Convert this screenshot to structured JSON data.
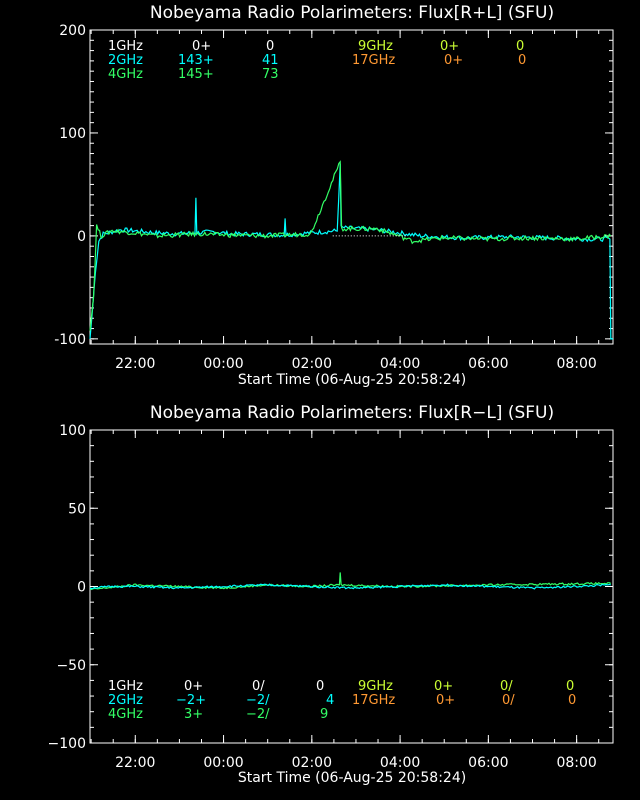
{
  "colors": {
    "bg": "#000000",
    "axis": "#ffffff",
    "1GHz": "#ffffff",
    "2GHz": "#00ffff",
    "4GHz": "#33ff66",
    "9GHz": "#ccff33",
    "17GHz": "#ff9933"
  },
  "chart_data": [
    {
      "type": "line",
      "title": "Nobeyama Radio Polarimeters: Flux[R+L] (SFU)",
      "xlabel": "Start Time (06-Aug-25 20:58:24)",
      "x_range_hours": [
        0,
        11.85
      ],
      "x_ticks": [
        "22:00",
        "00:00",
        "02:00",
        "04:00",
        "06:00",
        "08:00"
      ],
      "ylim": [
        -105,
        200
      ],
      "y_ticks": [
        "200",
        "100",
        "0",
        "-100"
      ],
      "legend": [
        {
          "band": "1GHz",
          "v1": "0+",
          "v2": "0"
        },
        {
          "band": "2GHz",
          "v1": "143+",
          "v2": "41"
        },
        {
          "band": "4GHz",
          "v1": "145+",
          "v2": "73"
        },
        {
          "band": "9GHz",
          "v1": "0+",
          "v2": "0"
        },
        {
          "band": "17GHz",
          "v1": "0+",
          "v2": "0"
        }
      ],
      "series": [
        {
          "name": "2GHz",
          "points": [
            [
              0.0,
              -100
            ],
            [
              0.05,
              -75
            ],
            [
              0.12,
              -35
            ],
            [
              0.2,
              -5
            ],
            [
              0.3,
              2
            ],
            [
              0.5,
              4
            ],
            [
              0.7,
              6
            ],
            [
              1.0,
              5
            ],
            [
              1.5,
              3
            ],
            [
              2.0,
              2
            ],
            [
              2.38,
              3
            ],
            [
              2.4,
              37
            ],
            [
              2.42,
              3
            ],
            [
              2.8,
              4
            ],
            [
              3.2,
              2
            ],
            [
              4.4,
              1
            ],
            [
              4.42,
              17
            ],
            [
              4.44,
              1
            ],
            [
              5.0,
              3
            ],
            [
              5.6,
              5
            ],
            [
              5.67,
              70
            ],
            [
              5.69,
              8
            ],
            [
              6.5,
              6
            ],
            [
              7.0,
              3
            ],
            [
              7.5,
              0
            ],
            [
              8.5,
              -2
            ],
            [
              9.5,
              -1
            ],
            [
              10.5,
              -2
            ],
            [
              11.2,
              -3
            ],
            [
              11.78,
              -3
            ],
            [
              11.8,
              -100
            ],
            [
              11.85,
              -100
            ]
          ]
        },
        {
          "name": "4GHz",
          "points": [
            [
              0.0,
              -90
            ],
            [
              0.08,
              -60
            ],
            [
              0.15,
              10
            ],
            [
              0.25,
              0
            ],
            [
              0.5,
              5
            ],
            [
              1.0,
              3
            ],
            [
              1.5,
              0
            ],
            [
              2.0,
              1
            ],
            [
              2.5,
              2
            ],
            [
              3.0,
              1
            ],
            [
              4.0,
              0
            ],
            [
              5.0,
              2
            ],
            [
              5.67,
              72
            ],
            [
              5.7,
              7
            ],
            [
              6.5,
              7
            ],
            [
              7.0,
              0
            ],
            [
              7.3,
              -5
            ],
            [
              8.0,
              -2
            ],
            [
              9.0,
              -3
            ],
            [
              10.0,
              -2
            ],
            [
              11.0,
              -3
            ],
            [
              11.8,
              0
            ]
          ]
        },
        {
          "name": "1GHz",
          "style": "dotted",
          "points": [
            [
              5.5,
              0
            ],
            [
              7.2,
              0
            ]
          ]
        }
      ]
    },
    {
      "type": "line",
      "title": "Nobeyama Radio Polarimeters: Flux[R−L] (SFU)",
      "xlabel": "Start Time (06-Aug-25 20:58:24)",
      "x_range_hours": [
        0,
        11.85
      ],
      "x_ticks": [
        "22:00",
        "00:00",
        "02:00",
        "04:00",
        "06:00",
        "08:00"
      ],
      "ylim": [
        -100,
        100
      ],
      "y_ticks": [
        "100",
        "50",
        "0",
        "−50",
        "−100"
      ],
      "legend": [
        {
          "band": "1GHz",
          "v1": "0+",
          "v2": "0/",
          "v3": "0"
        },
        {
          "band": "2GHz",
          "v1": "−2+",
          "v2": "−2/",
          "v3": "4"
        },
        {
          "band": "4GHz",
          "v1": "3+",
          "v2": "−2/",
          "v3": "9"
        },
        {
          "band": "9GHz",
          "v1": "0+",
          "v2": "0/",
          "v3": "0"
        },
        {
          "band": "17GHz",
          "v1": "0+",
          "v2": "0/",
          "v3": "0"
        }
      ],
      "series": [
        {
          "name": "4GHz",
          "points": [
            [
              0.0,
              -2
            ],
            [
              1.0,
              1
            ],
            [
              2.0,
              0
            ],
            [
              3.0,
              -1
            ],
            [
              4.0,
              1
            ],
            [
              5.0,
              0
            ],
            [
              5.65,
              1
            ],
            [
              5.67,
              9
            ],
            [
              5.69,
              1
            ],
            [
              7.0,
              0
            ],
            [
              9.0,
              1
            ],
            [
              11.8,
              2
            ]
          ]
        },
        {
          "name": "2GHz",
          "points": [
            [
              0.0,
              -1
            ],
            [
              0.5,
              0
            ],
            [
              1.0,
              0
            ],
            [
              2.0,
              -1
            ],
            [
              3.0,
              0
            ],
            [
              4.0,
              1
            ],
            [
              5.0,
              0
            ],
            [
              6.0,
              -1
            ],
            [
              7.0,
              0
            ],
            [
              8.0,
              1
            ],
            [
              9.0,
              0
            ],
            [
              10.0,
              -1
            ],
            [
              11.0,
              0
            ],
            [
              11.8,
              1
            ]
          ]
        }
      ]
    }
  ]
}
